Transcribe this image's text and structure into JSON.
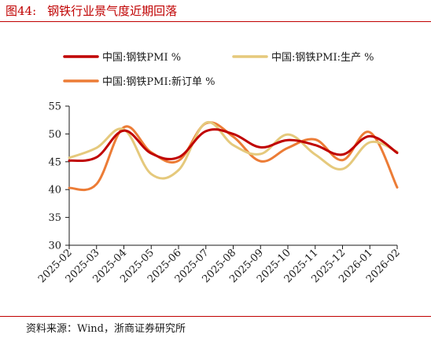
{
  "figure": {
    "number": "图44:",
    "title": "钢铁行业景气度近期回落",
    "source": "资料来源：Wind，浙商证券研究所"
  },
  "chart_data": {
    "type": "line",
    "categories": [
      "2025-02",
      "2025-03",
      "2025-04",
      "2025-05",
      "2025-06",
      "2025-07",
      "2025-08",
      "2025-09",
      "2025-10",
      "2025-11",
      "2025-12",
      "2026-01",
      "2026-02"
    ],
    "yticks": [
      "30",
      "35",
      "40",
      "45",
      "50",
      "55"
    ],
    "ylim": [
      30,
      55
    ],
    "legend_position": "top",
    "series": [
      {
        "name": "中国:钢铁PMI %",
        "color": "#c00000",
        "width": 3,
        "values": [
          45.2,
          45.8,
          50.6,
          46.5,
          45.8,
          50.5,
          50.0,
          47.6,
          48.9,
          48.0,
          46.3,
          49.6,
          46.6
        ]
      },
      {
        "name": "中国:钢铁PMI:生产 %",
        "color": "#e5c97c",
        "width": 3,
        "values": [
          45.7,
          47.5,
          50.8,
          42.8,
          43.5,
          52.0,
          48.0,
          46.4,
          49.9,
          46.3,
          43.7,
          48.5,
          46.8
        ]
      },
      {
        "name": "中国:钢铁PMI:新订单 %",
        "color": "#ec7c36",
        "width": 3,
        "values": [
          40.3,
          41.0,
          51.2,
          46.7,
          45.2,
          51.9,
          49.5,
          45.1,
          47.5,
          49.0,
          45.3,
          50.3,
          40.4
        ]
      }
    ]
  }
}
